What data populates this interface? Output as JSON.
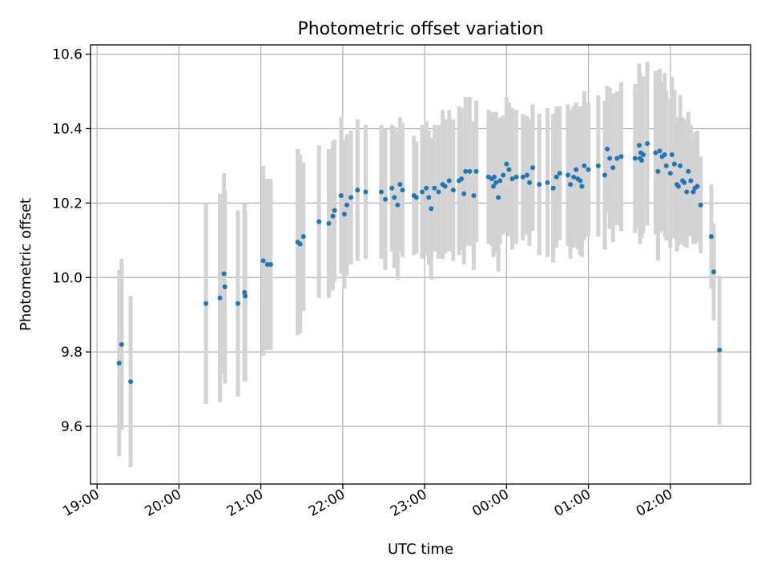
{
  "chart_data": {
    "type": "scatter",
    "title": "Photometric offset variation",
    "xlabel": "UTC time",
    "ylabel": "Photometric offset",
    "grid": true,
    "x_tick_labels": [
      "19:00",
      "20:00",
      "21:00",
      "22:00",
      "23:00",
      "00:00",
      "01:00",
      "02:00"
    ],
    "y_tick_labels": [
      "9.6",
      "9.8",
      "10.0",
      "10.2",
      "10.4",
      "10.6"
    ],
    "y_ticks": [
      9.6,
      9.8,
      10.0,
      10.2,
      10.4,
      10.6
    ],
    "x_tick_hours": [
      19,
      20,
      21,
      22,
      23,
      24,
      25,
      26
    ],
    "xlim_hours": [
      18.92,
      26.98
    ],
    "ylim": [
      9.445,
      10.625
    ],
    "colors": {
      "points": "#1f77b4",
      "error_bars": "#d3d3d3"
    },
    "x_hours": [
      19.27,
      19.3,
      19.41,
      20.33,
      20.5,
      20.55,
      20.56,
      20.72,
      20.8,
      20.81,
      21.03,
      21.08,
      21.12,
      21.45,
      21.48,
      21.52,
      21.71,
      21.83,
      21.88,
      21.9,
      21.98,
      22.02,
      22.05,
      22.1,
      22.18,
      22.28,
      22.47,
      22.52,
      22.6,
      22.63,
      22.67,
      22.7,
      22.73,
      22.87,
      22.9,
      22.97,
      23.02,
      23.05,
      23.08,
      23.12,
      23.17,
      23.22,
      23.25,
      23.3,
      23.35,
      23.42,
      23.45,
      23.48,
      23.5,
      23.55,
      23.6,
      23.63,
      23.78,
      23.82,
      23.84,
      23.85,
      23.87,
      23.9,
      23.92,
      23.96,
      24.0,
      24.03,
      24.07,
      24.12,
      24.2,
      24.25,
      24.28,
      24.32,
      24.4,
      24.5,
      24.57,
      24.61,
      24.65,
      24.75,
      24.78,
      24.82,
      24.85,
      24.87,
      24.9,
      24.92,
      24.95,
      25.0,
      25.12,
      25.2,
      25.23,
      25.26,
      25.3,
      25.35,
      25.4,
      25.57,
      25.62,
      25.63,
      25.64,
      25.65,
      25.67,
      25.72,
      25.82,
      25.85,
      25.87,
      25.9,
      25.93,
      25.95,
      26.0,
      26.02,
      26.05,
      26.08,
      26.1,
      26.12,
      26.15,
      26.17,
      26.2,
      26.22,
      26.25,
      26.28,
      26.3,
      26.33,
      26.37,
      26.5,
      26.53,
      26.6
    ],
    "y_values": [
      9.77,
      9.82,
      9.72,
      9.93,
      9.945,
      10.01,
      9.975,
      9.93,
      9.96,
      9.95,
      10.045,
      10.035,
      10.035,
      10.095,
      10.09,
      10.11,
      10.15,
      10.145,
      10.165,
      10.18,
      10.22,
      10.17,
      10.195,
      10.215,
      10.235,
      10.23,
      10.23,
      10.21,
      10.24,
      10.215,
      10.195,
      10.25,
      10.235,
      10.22,
      10.215,
      10.23,
      10.24,
      10.215,
      10.185,
      10.24,
      10.23,
      10.25,
      10.245,
      10.26,
      10.235,
      10.26,
      10.265,
      10.225,
      10.285,
      10.285,
      10.22,
      10.285,
      10.27,
      10.265,
      10.245,
      10.27,
      10.255,
      10.215,
      10.26,
      10.275,
      10.305,
      10.29,
      10.265,
      10.27,
      10.27,
      10.275,
      10.255,
      10.295,
      10.25,
      10.255,
      10.24,
      10.27,
      10.28,
      10.275,
      10.25,
      10.27,
      10.29,
      10.265,
      10.26,
      10.245,
      10.3,
      10.29,
      10.3,
      10.275,
      10.345,
      10.32,
      10.295,
      10.32,
      10.325,
      10.32,
      10.355,
      10.32,
      10.335,
      10.315,
      10.33,
      10.36,
      10.335,
      10.285,
      10.34,
      10.325,
      10.33,
      10.3,
      10.28,
      10.33,
      10.305,
      10.25,
      10.245,
      10.3,
      10.26,
      10.255,
      10.23,
      10.285,
      10.26,
      10.23,
      10.24,
      10.245,
      10.195,
      10.11,
      10.015,
      9.805
    ],
    "y_err": [
      0.25,
      0.23,
      0.23,
      0.27,
      0.28,
      0.27,
      0.26,
      0.25,
      0.24,
      0.23,
      0.255,
      0.23,
      0.23,
      0.25,
      0.24,
      0.2,
      0.205,
      0.2,
      0.2,
      0.19,
      0.21,
      0.2,
      0.19,
      0.18,
      0.19,
      0.18,
      0.18,
      0.19,
      0.17,
      0.19,
      0.2,
      0.18,
      0.18,
      0.16,
      0.15,
      0.18,
      0.18,
      0.18,
      0.19,
      0.17,
      0.18,
      0.2,
      0.18,
      0.19,
      0.19,
      0.2,
      0.19,
      0.19,
      0.2,
      0.2,
      0.2,
      0.19,
      0.18,
      0.18,
      0.19,
      0.17,
      0.19,
      0.2,
      0.17,
      0.16,
      0.18,
      0.18,
      0.19,
      0.18,
      0.17,
      0.16,
      0.17,
      0.17,
      0.19,
      0.2,
      0.2,
      0.19,
      0.18,
      0.19,
      0.2,
      0.19,
      0.18,
      0.19,
      0.2,
      0.19,
      0.2,
      0.18,
      0.19,
      0.2,
      0.17,
      0.19,
      0.2,
      0.18,
      0.2,
      0.2,
      0.22,
      0.23,
      0.2,
      0.21,
      0.21,
      0.22,
      0.22,
      0.24,
      0.22,
      0.2,
      0.22,
      0.2,
      0.2,
      0.21,
      0.2,
      0.18,
      0.16,
      0.19,
      0.17,
      0.17,
      0.15,
      0.16,
      0.15,
      0.14,
      0.15,
      0.15,
      0.13,
      0.14,
      0.13,
      0.2
    ]
  }
}
